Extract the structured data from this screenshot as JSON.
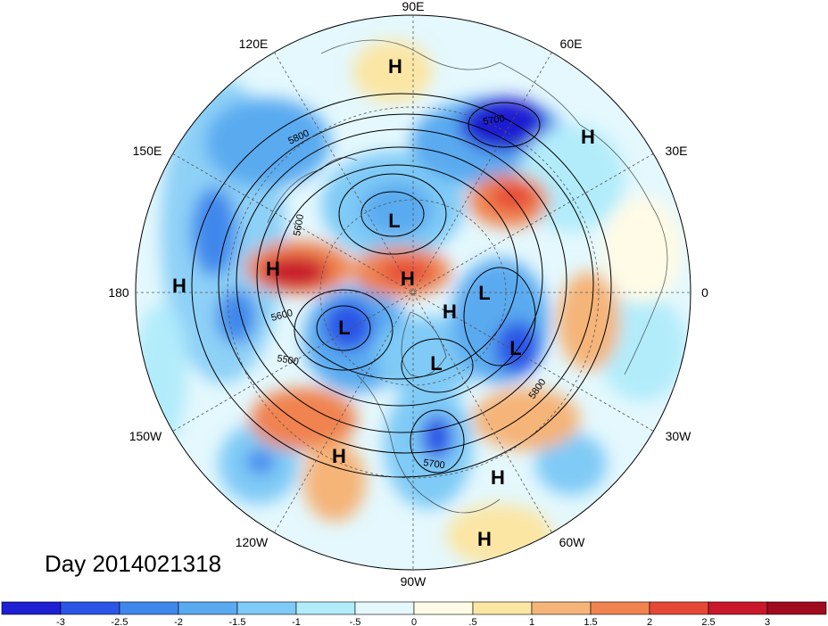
{
  "date_label": "Day 2014021318",
  "longitude_labels": [
    "90E",
    "60E",
    "30E",
    "0",
    "30W",
    "60W",
    "90W",
    "120W",
    "150W",
    "180",
    "150E",
    "120E"
  ],
  "contour_labels": [
    "5800",
    "5700",
    "5600",
    "5600",
    "5500",
    "5800",
    "5700"
  ],
  "pressure_centers": [
    "H",
    "H",
    "L",
    "H",
    "H",
    "H",
    "L",
    "H",
    "L",
    "L",
    "L",
    "H",
    "H",
    "H"
  ],
  "colorbar": {
    "colors": [
      "#1e1ed2",
      "#2b55e6",
      "#3f87ec",
      "#5aaaf0",
      "#7fcaf6",
      "#b2ecfb",
      "#e4f8fd",
      "#fffbe6",
      "#fbe6a4",
      "#f5b478",
      "#f08350",
      "#e64838",
      "#c8182a",
      "#a00c1e"
    ],
    "tick_labels": [
      "-3",
      "-2.5",
      "-2",
      "-1.5",
      "-1",
      "-.5",
      "0",
      ".5",
      "1",
      "1.5",
      "2",
      "2.5",
      "3"
    ]
  }
}
